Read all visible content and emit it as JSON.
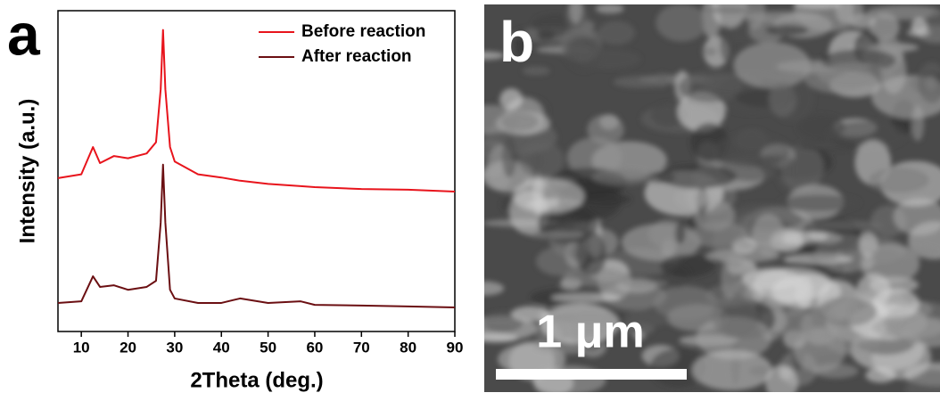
{
  "chart_data": {
    "type": "line",
    "panel_label": "a",
    "x_label": "2Theta (deg.)",
    "y_label": "Intensity (a.u.)",
    "x": [
      5,
      10,
      12.5,
      14,
      17,
      20,
      24,
      26,
      27,
      27.5,
      28,
      29,
      30,
      35,
      40,
      44,
      50,
      57,
      60,
      70,
      80,
      90
    ],
    "series": [
      {
        "name": "Before reaction",
        "color": "#e8141c",
        "values": [
          47.8,
          49,
          57.5,
          52.5,
          54.7,
          54,
          55.5,
          59,
          75.5,
          94,
          75.5,
          57.5,
          53,
          49,
          48,
          47,
          46,
          45.3,
          45,
          44.4,
          44.2,
          43.6
        ]
      },
      {
        "name": "After reaction",
        "color": "#6b0f12",
        "values": [
          8.9,
          9.4,
          17.2,
          13.9,
          14.4,
          13,
          13.9,
          15.8,
          33.9,
          52,
          33.9,
          13,
          10.3,
          8.9,
          8.9,
          10.3,
          8.9,
          9.4,
          8.3,
          8.1,
          7.8,
          7.5
        ]
      }
    ],
    "xlim": [
      5,
      90
    ],
    "xticks": [
      10,
      20,
      30,
      40,
      50,
      60,
      70,
      80,
      90
    ],
    "ylim": [
      0,
      100
    ],
    "legend": "upper right"
  },
  "image_panel": {
    "panel_label": "b",
    "scale_bar": "1 μm"
  }
}
